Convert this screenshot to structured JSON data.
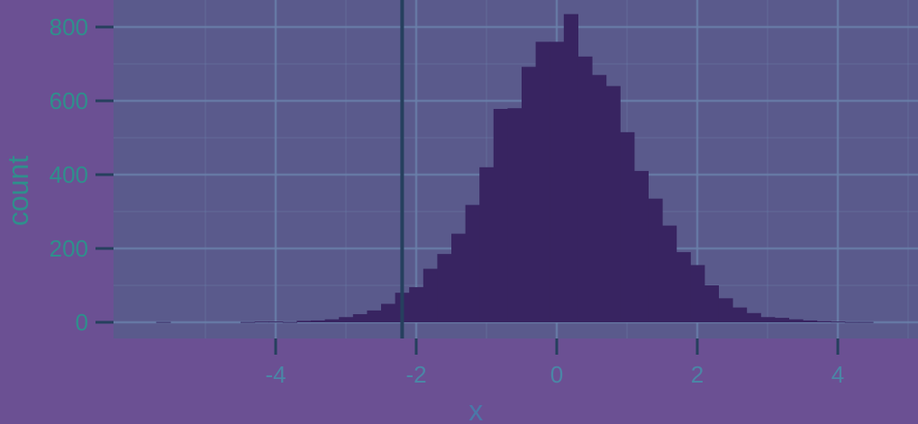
{
  "colors": {
    "background": "#6b5093",
    "panel": "#5a5a8c",
    "bar": "#382461",
    "grid": "#6a80aa",
    "axis_text": "#2f8f8c",
    "vline": "#26405e"
  },
  "chart_data": {
    "type": "bar",
    "title": "",
    "xlabel": "x",
    "ylabel": "count",
    "xlim": [
      -6.3,
      5.2
    ],
    "ylim": [
      -40,
      870
    ],
    "x_ticks": [
      "-4",
      "-2",
      "0",
      "2",
      "4"
    ],
    "y_ticks": [
      "0",
      "200",
      "400",
      "600",
      "800"
    ],
    "grid": true,
    "legend": "none",
    "bin_width": 0.2,
    "vline_x": -2.2,
    "bins": [
      {
        "x": -5.6,
        "count": 1
      },
      {
        "x": -4.4,
        "count": 1
      },
      {
        "x": -4.2,
        "count": 2
      },
      {
        "x": -4.0,
        "count": 2
      },
      {
        "x": -3.8,
        "count": 1
      },
      {
        "x": -3.6,
        "count": 4
      },
      {
        "x": -3.4,
        "count": 5
      },
      {
        "x": -3.2,
        "count": 8
      },
      {
        "x": -3.0,
        "count": 14
      },
      {
        "x": -2.8,
        "count": 22
      },
      {
        "x": -2.6,
        "count": 32
      },
      {
        "x": -2.4,
        "count": 50
      },
      {
        "x": -2.2,
        "count": 80
      },
      {
        "x": -2.0,
        "count": 95
      },
      {
        "x": -1.8,
        "count": 145
      },
      {
        "x": -1.6,
        "count": 185
      },
      {
        "x": -1.4,
        "count": 240
      },
      {
        "x": -1.2,
        "count": 318
      },
      {
        "x": -1.0,
        "count": 420
      },
      {
        "x": -0.8,
        "count": 578
      },
      {
        "x": -0.6,
        "count": 580
      },
      {
        "x": -0.4,
        "count": 692
      },
      {
        "x": -0.2,
        "count": 760
      },
      {
        "x": 0.0,
        "count": 760
      },
      {
        "x": 0.2,
        "count": 835
      },
      {
        "x": 0.4,
        "count": 720
      },
      {
        "x": 0.6,
        "count": 670
      },
      {
        "x": 0.8,
        "count": 640
      },
      {
        "x": 1.0,
        "count": 515
      },
      {
        "x": 1.2,
        "count": 410
      },
      {
        "x": 1.4,
        "count": 335
      },
      {
        "x": 1.6,
        "count": 262
      },
      {
        "x": 1.8,
        "count": 190
      },
      {
        "x": 2.0,
        "count": 155
      },
      {
        "x": 2.2,
        "count": 100
      },
      {
        "x": 2.4,
        "count": 65
      },
      {
        "x": 2.6,
        "count": 40
      },
      {
        "x": 2.8,
        "count": 25
      },
      {
        "x": 3.0,
        "count": 14
      },
      {
        "x": 3.2,
        "count": 12
      },
      {
        "x": 3.4,
        "count": 8
      },
      {
        "x": 3.6,
        "count": 5
      },
      {
        "x": 3.8,
        "count": 3
      },
      {
        "x": 4.0,
        "count": 2
      },
      {
        "x": 4.2,
        "count": 1
      },
      {
        "x": 4.4,
        "count": 1
      }
    ]
  }
}
